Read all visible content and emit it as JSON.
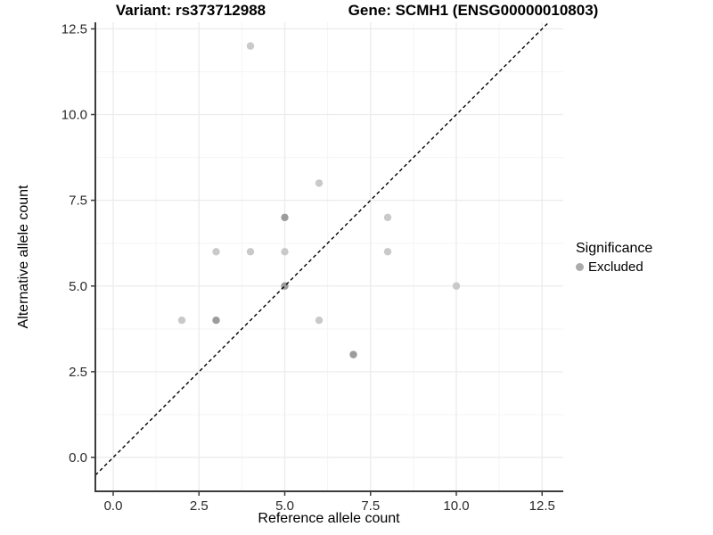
{
  "chart_data": {
    "type": "scatter",
    "title_left": "Variant: rs373712988",
    "title_right": "Gene: SCMH1 (ENSG00000010803)",
    "xlabel": "Reference allele count",
    "ylabel": "Alternative allele count",
    "xlim": [
      0,
      12.5
    ],
    "ylim": [
      0,
      12.5
    ],
    "grid": true,
    "x_ticks": {
      "values": [
        0,
        2.5,
        5,
        7.5,
        10,
        12.5
      ],
      "labels": [
        "0.0",
        "2.5",
        "5.0",
        "7.5",
        "10.0",
        "12.5"
      ]
    },
    "y_ticks": {
      "values": [
        0,
        2.5,
        5,
        7.5,
        10,
        12.5
      ],
      "labels": [
        "0.0",
        "2.5",
        "5.0",
        "7.5",
        "10.0",
        "12.5"
      ]
    },
    "minor_ticks": [
      1.25,
      3.75,
      6.25,
      8.75,
      11.25
    ],
    "identity_line": {
      "equation": "y = x",
      "style": "dashed",
      "color": "#000000"
    },
    "legend": {
      "title": "Significance",
      "position": "right",
      "items": [
        {
          "label": "Excluded",
          "color": "#ababab"
        }
      ]
    },
    "series": [
      {
        "name": "Excluded",
        "points": [
          {
            "x": 4,
            "y": 12,
            "shade": "light"
          },
          {
            "x": 6,
            "y": 8,
            "shade": "light"
          },
          {
            "x": 5,
            "y": 7,
            "shade": "dark"
          },
          {
            "x": 8,
            "y": 7,
            "shade": "light"
          },
          {
            "x": 3,
            "y": 6,
            "shade": "light"
          },
          {
            "x": 4,
            "y": 6,
            "shade": "light"
          },
          {
            "x": 5,
            "y": 6,
            "shade": "light"
          },
          {
            "x": 8,
            "y": 6,
            "shade": "light"
          },
          {
            "x": 5,
            "y": 5,
            "shade": "dark"
          },
          {
            "x": 10,
            "y": 5,
            "shade": "light"
          },
          {
            "x": 2,
            "y": 4,
            "shade": "light"
          },
          {
            "x": 3,
            "y": 4,
            "shade": "dark"
          },
          {
            "x": 6,
            "y": 4,
            "shade": "light"
          },
          {
            "x": 7,
            "y": 3,
            "shade": "dark"
          }
        ]
      }
    ],
    "colors": {
      "point_light": "#c9c9c9",
      "point_dark": "#9c9c9c",
      "grid_major": "#ebebeb",
      "grid_minor": "#f5f5f5",
      "axis": "#3c3c3c",
      "text": "#2b2b2b"
    }
  }
}
